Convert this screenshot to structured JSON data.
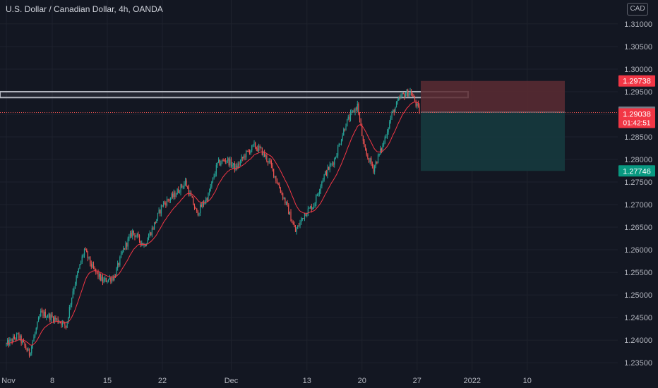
{
  "header": {
    "title": "U.S. Dollar / Canadian Dollar, 4h, OANDA",
    "currency": "CAD"
  },
  "colors": {
    "background": "#131722",
    "up": "#26a69a",
    "down": "#ef5350",
    "ma": "#f23645",
    "grid": "#1e222d",
    "axis_text": "#b2b5be",
    "zone": "#b2b5be",
    "risk_fill": "#5c2c33",
    "reward_fill": "#163a3e"
  },
  "chart_data": {
    "type": "candlestick",
    "symbol": "U.S. Dollar / Canadian Dollar",
    "interval": "4h",
    "source": "OANDA",
    "ylim": [
      1.2333,
      1.3153
    ],
    "y_ticks": [
      "1.31000",
      "1.30500",
      "1.30000",
      "1.29500",
      "1.29000",
      "1.28500",
      "1.28000",
      "1.27500",
      "1.27000",
      "1.26500",
      "1.26000",
      "1.25500",
      "1.25000",
      "1.24500",
      "1.24000",
      "1.23500"
    ],
    "x_ticks": [
      "Nov",
      "8",
      "15",
      "22",
      "Dec",
      "13",
      "20",
      "27",
      "2022",
      "10"
    ],
    "x_tick_bar_index": [
      0,
      40,
      88,
      136,
      196,
      262,
      310,
      358,
      406,
      454
    ],
    "price_path": [
      [
        0,
        1.239
      ],
      [
        10,
        1.241
      ],
      [
        20,
        1.237
      ],
      [
        30,
        1.246
      ],
      [
        40,
        1.245
      ],
      [
        48,
        1.244
      ],
      [
        52,
        1.243
      ],
      [
        58,
        1.251
      ],
      [
        68,
        1.26
      ],
      [
        75,
        1.256
      ],
      [
        84,
        1.253
      ],
      [
        94,
        1.254
      ],
      [
        102,
        1.26
      ],
      [
        110,
        1.264
      ],
      [
        120,
        1.261
      ],
      [
        128,
        1.265
      ],
      [
        136,
        1.27
      ],
      [
        146,
        1.272
      ],
      [
        156,
        1.275
      ],
      [
        166,
        1.268
      ],
      [
        176,
        1.272
      ],
      [
        184,
        1.279
      ],
      [
        192,
        1.28
      ],
      [
        200,
        1.278
      ],
      [
        208,
        1.281
      ],
      [
        216,
        1.283
      ],
      [
        222,
        1.282
      ],
      [
        230,
        1.279
      ],
      [
        236,
        1.275
      ],
      [
        244,
        1.27
      ],
      [
        252,
        1.264
      ],
      [
        260,
        1.268
      ],
      [
        268,
        1.27
      ],
      [
        276,
        1.276
      ],
      [
        286,
        1.28
      ],
      [
        296,
        1.288
      ],
      [
        306,
        1.292
      ],
      [
        312,
        1.282
      ],
      [
        320,
        1.278
      ],
      [
        328,
        1.283
      ],
      [
        336,
        1.29
      ],
      [
        344,
        1.294
      ],
      [
        352,
        1.295
      ],
      [
        356,
        1.293
      ],
      [
        360,
        1.2904
      ]
    ],
    "moving_average": {
      "name": "",
      "color": "#f23645"
    },
    "support_resistance_zone": {
      "top": 1.295,
      "bottom": 1.2937
    },
    "position": {
      "type": "short",
      "entry": 1.29046,
      "stop": 1.29738,
      "target": 1.27746
    },
    "last_price": {
      "value": "1.29038",
      "countdown": "01:42:51"
    },
    "price_labels": {
      "stop": "1.29738",
      "entry": "1.29046",
      "target": "1.27746"
    }
  }
}
